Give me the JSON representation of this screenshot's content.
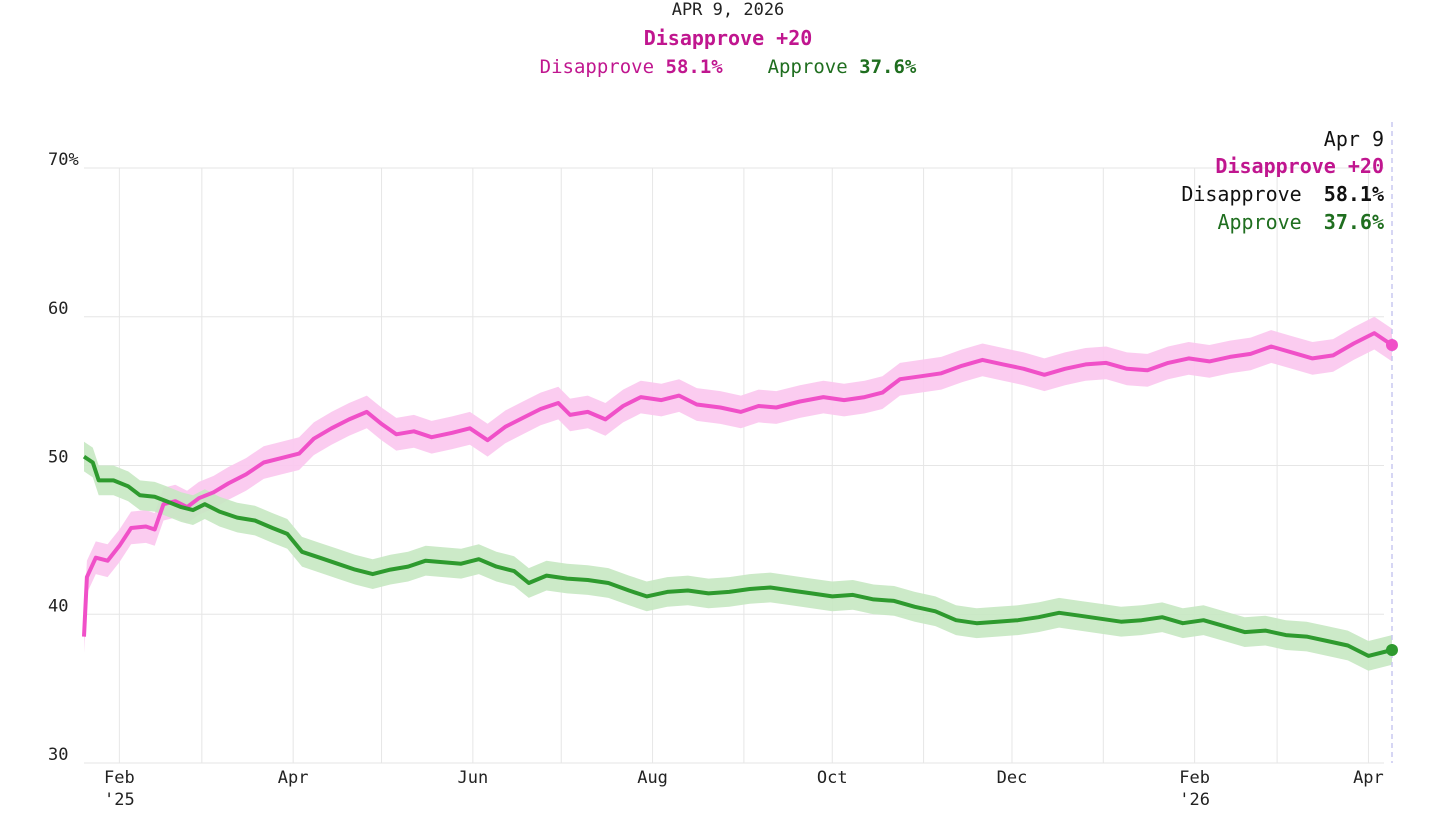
{
  "header": {
    "date": "APR 9, 2026",
    "margin_label": "Disapprove +20",
    "disapprove_label": "Disapprove",
    "disapprove_value": "58.1%",
    "approve_label": "Approve",
    "approve_value": "37.6%"
  },
  "tooltip": {
    "date": "Apr 9",
    "margin": "Disapprove +20",
    "disapprove_label": "Disapprove",
    "disapprove_value": "58.1%",
    "approve_label": "Approve",
    "approve_value": "37.6%"
  },
  "colors": {
    "disapprove": "#f050c8",
    "disapprove_text": "#c0168f",
    "disapprove_band": "#fbc6ee",
    "approve": "#2e9a2e",
    "approve_text": "#1f6e1f",
    "approve_band": "#c6e8c2",
    "grid": "#e6e6e6",
    "cursor": "#c8c8f0"
  },
  "chart_data": {
    "type": "line",
    "x_axis": {
      "start": "2025-01-20",
      "end": "2026-04-09",
      "ticks": [
        {
          "date": "2025-02-01",
          "label": "Feb",
          "sublabel": "'25"
        },
        {
          "date": "2025-04-01",
          "label": "Apr"
        },
        {
          "date": "2025-06-01",
          "label": "Jun"
        },
        {
          "date": "2025-08-01",
          "label": "Aug"
        },
        {
          "date": "2025-10-01",
          "label": "Oct"
        },
        {
          "date": "2025-12-01",
          "label": "Dec"
        },
        {
          "date": "2026-02-01",
          "label": "Feb",
          "sublabel": "'26"
        },
        {
          "date": "2026-04-01",
          "label": "Apr"
        }
      ],
      "minor_gridlines": [
        "2025-03-01",
        "2025-05-01",
        "2025-07-01",
        "2025-09-01",
        "2025-11-01",
        "2026-01-01",
        "2026-03-01"
      ]
    },
    "y_axis": {
      "ylim": [
        30,
        70
      ],
      "ticks": [
        {
          "value": 30,
          "label": "30"
        },
        {
          "value": 40,
          "label": "40"
        },
        {
          "value": 50,
          "label": "50"
        },
        {
          "value": 60,
          "label": "60"
        },
        {
          "value": 70,
          "label": "70%"
        }
      ]
    },
    "series": [
      {
        "name": "Disapprove",
        "color": "#f050c8",
        "band_halfwidth": 1.1,
        "points": [
          [
            "2025-01-20",
            38.5
          ],
          [
            "2025-01-21",
            42.5
          ],
          [
            "2025-01-24",
            43.8
          ],
          [
            "2025-01-28",
            43.6
          ],
          [
            "2025-02-01",
            44.6
          ],
          [
            "2025-02-05",
            45.8
          ],
          [
            "2025-02-10",
            45.9
          ],
          [
            "2025-02-13",
            45.7
          ],
          [
            "2025-02-16",
            47.4
          ],
          [
            "2025-02-20",
            47.6
          ],
          [
            "2025-02-24",
            47.2
          ],
          [
            "2025-02-28",
            47.8
          ],
          [
            "2025-03-05",
            48.2
          ],
          [
            "2025-03-10",
            48.8
          ],
          [
            "2025-03-16",
            49.4
          ],
          [
            "2025-03-22",
            50.2
          ],
          [
            "2025-03-28",
            50.5
          ],
          [
            "2025-04-03",
            50.8
          ],
          [
            "2025-04-08",
            51.8
          ],
          [
            "2025-04-14",
            52.5
          ],
          [
            "2025-04-20",
            53.1
          ],
          [
            "2025-04-26",
            53.6
          ],
          [
            "2025-05-01",
            52.8
          ],
          [
            "2025-05-06",
            52.1
          ],
          [
            "2025-05-12",
            52.3
          ],
          [
            "2025-05-18",
            51.9
          ],
          [
            "2025-05-25",
            52.2
          ],
          [
            "2025-05-31",
            52.5
          ],
          [
            "2025-06-06",
            51.7
          ],
          [
            "2025-06-12",
            52.6
          ],
          [
            "2025-06-18",
            53.2
          ],
          [
            "2025-06-24",
            53.8
          ],
          [
            "2025-06-30",
            54.2
          ],
          [
            "2025-07-04",
            53.4
          ],
          [
            "2025-07-10",
            53.6
          ],
          [
            "2025-07-16",
            53.1
          ],
          [
            "2025-07-22",
            54.0
          ],
          [
            "2025-07-28",
            54.6
          ],
          [
            "2025-08-04",
            54.4
          ],
          [
            "2025-08-10",
            54.7
          ],
          [
            "2025-08-16",
            54.1
          ],
          [
            "2025-08-24",
            53.9
          ],
          [
            "2025-08-31",
            53.6
          ],
          [
            "2025-09-06",
            54.0
          ],
          [
            "2025-09-12",
            53.9
          ],
          [
            "2025-09-20",
            54.3
          ],
          [
            "2025-09-28",
            54.6
          ],
          [
            "2025-10-05",
            54.4
          ],
          [
            "2025-10-12",
            54.6
          ],
          [
            "2025-10-18",
            54.9
          ],
          [
            "2025-10-24",
            55.8
          ],
          [
            "2025-10-31",
            56.0
          ],
          [
            "2025-11-07",
            56.2
          ],
          [
            "2025-11-14",
            56.7
          ],
          [
            "2025-11-21",
            57.1
          ],
          [
            "2025-11-28",
            56.8
          ],
          [
            "2025-12-05",
            56.5
          ],
          [
            "2025-12-12",
            56.1
          ],
          [
            "2025-12-19",
            56.5
          ],
          [
            "2025-12-26",
            56.8
          ],
          [
            "2026-01-02",
            56.9
          ],
          [
            "2026-01-09",
            56.5
          ],
          [
            "2026-01-16",
            56.4
          ],
          [
            "2026-01-23",
            56.9
          ],
          [
            "2026-01-30",
            57.2
          ],
          [
            "2026-02-06",
            57.0
          ],
          [
            "2026-02-13",
            57.3
          ],
          [
            "2026-02-20",
            57.5
          ],
          [
            "2026-02-27",
            58.0
          ],
          [
            "2026-03-06",
            57.6
          ],
          [
            "2026-03-13",
            57.2
          ],
          [
            "2026-03-20",
            57.4
          ],
          [
            "2026-03-27",
            58.2
          ],
          [
            "2026-04-03",
            58.9
          ],
          [
            "2026-04-09",
            58.1
          ]
        ]
      },
      {
        "name": "Approve",
        "color": "#2e9a2e",
        "band_halfwidth": 1.0,
        "points": [
          [
            "2025-01-20",
            50.6
          ],
          [
            "2025-01-23",
            50.2
          ],
          [
            "2025-01-25",
            49.0
          ],
          [
            "2025-01-30",
            49.0
          ],
          [
            "2025-02-04",
            48.6
          ],
          [
            "2025-02-08",
            48.0
          ],
          [
            "2025-02-13",
            47.9
          ],
          [
            "2025-02-17",
            47.6
          ],
          [
            "2025-02-22",
            47.2
          ],
          [
            "2025-02-26",
            47.0
          ],
          [
            "2025-03-02",
            47.4
          ],
          [
            "2025-03-07",
            46.9
          ],
          [
            "2025-03-13",
            46.5
          ],
          [
            "2025-03-19",
            46.3
          ],
          [
            "2025-03-25",
            45.8
          ],
          [
            "2025-03-30",
            45.4
          ],
          [
            "2025-04-04",
            44.2
          ],
          [
            "2025-04-10",
            43.8
          ],
          [
            "2025-04-16",
            43.4
          ],
          [
            "2025-04-22",
            43.0
          ],
          [
            "2025-04-28",
            42.7
          ],
          [
            "2025-05-04",
            43.0
          ],
          [
            "2025-05-10",
            43.2
          ],
          [
            "2025-05-16",
            43.6
          ],
          [
            "2025-05-22",
            43.5
          ],
          [
            "2025-05-28",
            43.4
          ],
          [
            "2025-06-03",
            43.7
          ],
          [
            "2025-06-09",
            43.2
          ],
          [
            "2025-06-15",
            42.9
          ],
          [
            "2025-06-20",
            42.1
          ],
          [
            "2025-06-26",
            42.6
          ],
          [
            "2025-07-03",
            42.4
          ],
          [
            "2025-07-10",
            42.3
          ],
          [
            "2025-07-17",
            42.1
          ],
          [
            "2025-07-24",
            41.6
          ],
          [
            "2025-07-30",
            41.2
          ],
          [
            "2025-08-06",
            41.5
          ],
          [
            "2025-08-13",
            41.6
          ],
          [
            "2025-08-20",
            41.4
          ],
          [
            "2025-08-27",
            41.5
          ],
          [
            "2025-09-03",
            41.7
          ],
          [
            "2025-09-10",
            41.8
          ],
          [
            "2025-09-17",
            41.6
          ],
          [
            "2025-09-24",
            41.4
          ],
          [
            "2025-10-01",
            41.2
          ],
          [
            "2025-10-08",
            41.3
          ],
          [
            "2025-10-15",
            41.0
          ],
          [
            "2025-10-22",
            40.9
          ],
          [
            "2025-10-29",
            40.5
          ],
          [
            "2025-11-05",
            40.2
          ],
          [
            "2025-11-12",
            39.6
          ],
          [
            "2025-11-19",
            39.4
          ],
          [
            "2025-11-26",
            39.5
          ],
          [
            "2025-12-03",
            39.6
          ],
          [
            "2025-12-10",
            39.8
          ],
          [
            "2025-12-17",
            40.1
          ],
          [
            "2025-12-24",
            39.9
          ],
          [
            "2025-12-31",
            39.7
          ],
          [
            "2026-01-07",
            39.5
          ],
          [
            "2026-01-14",
            39.6
          ],
          [
            "2026-01-21",
            39.8
          ],
          [
            "2026-01-28",
            39.4
          ],
          [
            "2026-02-04",
            39.6
          ],
          [
            "2026-02-11",
            39.2
          ],
          [
            "2026-02-18",
            38.8
          ],
          [
            "2026-02-25",
            38.9
          ],
          [
            "2026-03-04",
            38.6
          ],
          [
            "2026-03-11",
            38.5
          ],
          [
            "2026-03-18",
            38.2
          ],
          [
            "2026-03-25",
            37.9
          ],
          [
            "2026-04-01",
            37.2
          ],
          [
            "2026-04-09",
            37.6
          ]
        ]
      }
    ]
  }
}
